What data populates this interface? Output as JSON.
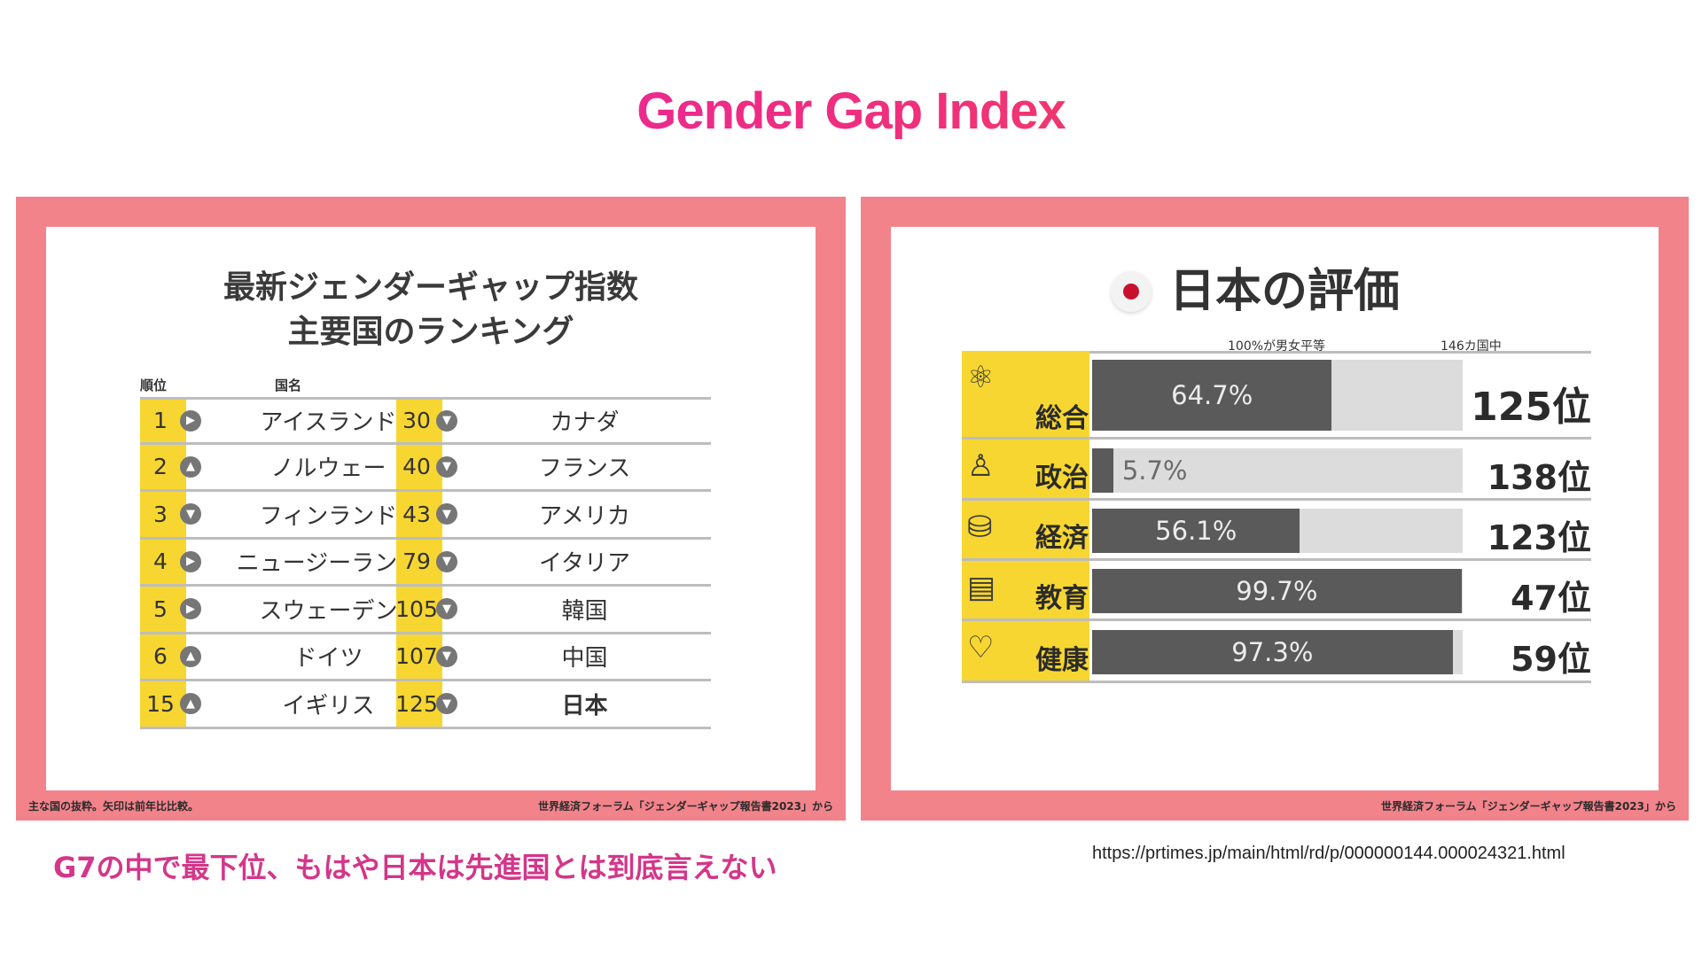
{
  "title": "Gender Gap Index",
  "left_panel": {
    "title_line1": "最新ジェンダーギャップ指数",
    "title_line2": "主要国のランキング",
    "col_rank": "順位",
    "col_country": "国名",
    "footer_left": "主な国の抜粋。矢印は前年比比較。",
    "footer_right": "世界経済フォーラム「ジェンダーギャップ報告書2023」から"
  },
  "right_panel": {
    "title": "日本の評価",
    "bar_header": "100%が男女平等",
    "rank_header": "146カ国中",
    "footer": "世界経済フォーラム「ジェンダーギャップ報告書2023」から"
  },
  "caption": "G7の中で最下位、もはや日本は先進国とは到底言えない",
  "source_url": "https://prtimes.jp/main/html/rd/p/000000144.000024321.html",
  "chart_data": [
    {
      "type": "table",
      "title": "最新ジェンダーギャップ指数 主要国のランキング",
      "columns": [
        "順位",
        "国名"
      ],
      "rows": [
        {
          "rank": "1",
          "country": "アイスランド",
          "trend": "right"
        },
        {
          "rank": "2",
          "country": "ノルウェー",
          "trend": "up"
        },
        {
          "rank": "3",
          "country": "フィンランド",
          "trend": "down"
        },
        {
          "rank": "4",
          "country": "ニュージーランド",
          "trend": "right"
        },
        {
          "rank": "5",
          "country": "スウェーデン",
          "trend": "right"
        },
        {
          "rank": "6",
          "country": "ドイツ",
          "trend": "up"
        },
        {
          "rank": "15",
          "country": "イギリス",
          "trend": "up"
        },
        {
          "rank": "30",
          "country": "カナダ",
          "trend": "down"
        },
        {
          "rank": "40",
          "country": "フランス",
          "trend": "down"
        },
        {
          "rank": "43",
          "country": "アメリカ",
          "trend": "down"
        },
        {
          "rank": "79",
          "country": "イタリア",
          "trend": "down"
        },
        {
          "rank": "105",
          "country": "韓国",
          "trend": "down"
        },
        {
          "rank": "107",
          "country": "中国",
          "trend": "down"
        },
        {
          "rank": "125",
          "country": "日本",
          "trend": "down"
        }
      ]
    },
    {
      "type": "bar",
      "title": "日本の評価",
      "categories": [
        "総合",
        "政治",
        "経済",
        "教育",
        "健康"
      ],
      "values": [
        64.7,
        5.7,
        56.1,
        99.7,
        97.3
      ],
      "value_labels": [
        "64.7%",
        "5.7%",
        "56.1%",
        "99.7%",
        "97.3%"
      ],
      "ranks": [
        "125位",
        "138位",
        "123位",
        "47位",
        "59位"
      ],
      "ylim": [
        0,
        100
      ],
      "colors": {
        "fill": "#5a5a5a",
        "track": "#dcdcdc",
        "label_band": "#f7d631"
      }
    }
  ]
}
